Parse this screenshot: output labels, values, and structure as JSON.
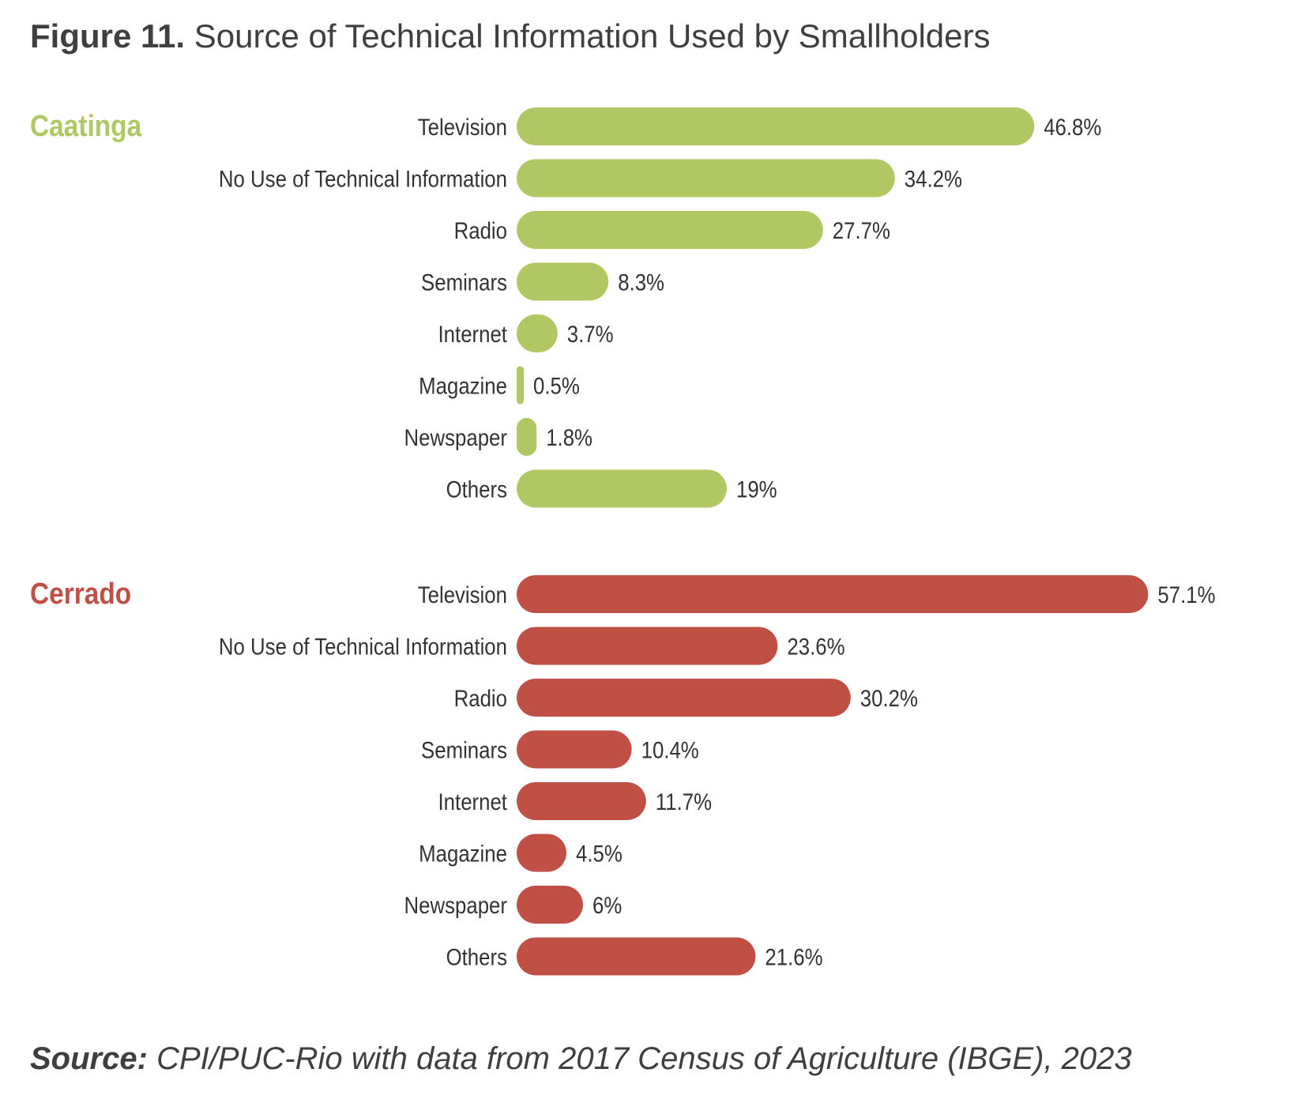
{
  "figure": {
    "number": "Figure 11.",
    "title": "Source of Technical Information Used by Smallholders"
  },
  "source": {
    "label": "Source:",
    "text": "CPI/PUC-Rio with data from 2017 Census of Agriculture (IBGE), 2023"
  },
  "chart_data": [
    {
      "type": "bar",
      "orientation": "horizontal",
      "panel_label": "Caatinga",
      "color": "#b1c764",
      "categories": [
        "Television",
        "No Use of Technical Information",
        "Radio",
        "Seminars",
        "Internet",
        "Magazine",
        "Newspaper",
        "Others"
      ],
      "values": [
        46.8,
        34.2,
        27.7,
        8.3,
        3.7,
        0.5,
        1.8,
        19
      ],
      "value_labels": [
        "46.8%",
        "34.2%",
        "27.7%",
        "8.3%",
        "3.7%",
        "0.5%",
        "1.8%",
        "19%"
      ],
      "unit": "%",
      "grid": false
    },
    {
      "type": "bar",
      "orientation": "horizontal",
      "panel_label": "Cerrado",
      "color": "#c05046",
      "categories": [
        "Television",
        "No Use of Technical Information",
        "Radio",
        "Seminars",
        "Internet",
        "Magazine",
        "Newspaper",
        "Others"
      ],
      "values": [
        57.1,
        23.6,
        30.2,
        10.4,
        11.7,
        4.5,
        6,
        21.6
      ],
      "value_labels": [
        "57.1%",
        "23.6%",
        "30.2%",
        "10.4%",
        "11.7%",
        "4.5%",
        "6%",
        "21.6%"
      ],
      "unit": "%",
      "grid": false
    }
  ]
}
